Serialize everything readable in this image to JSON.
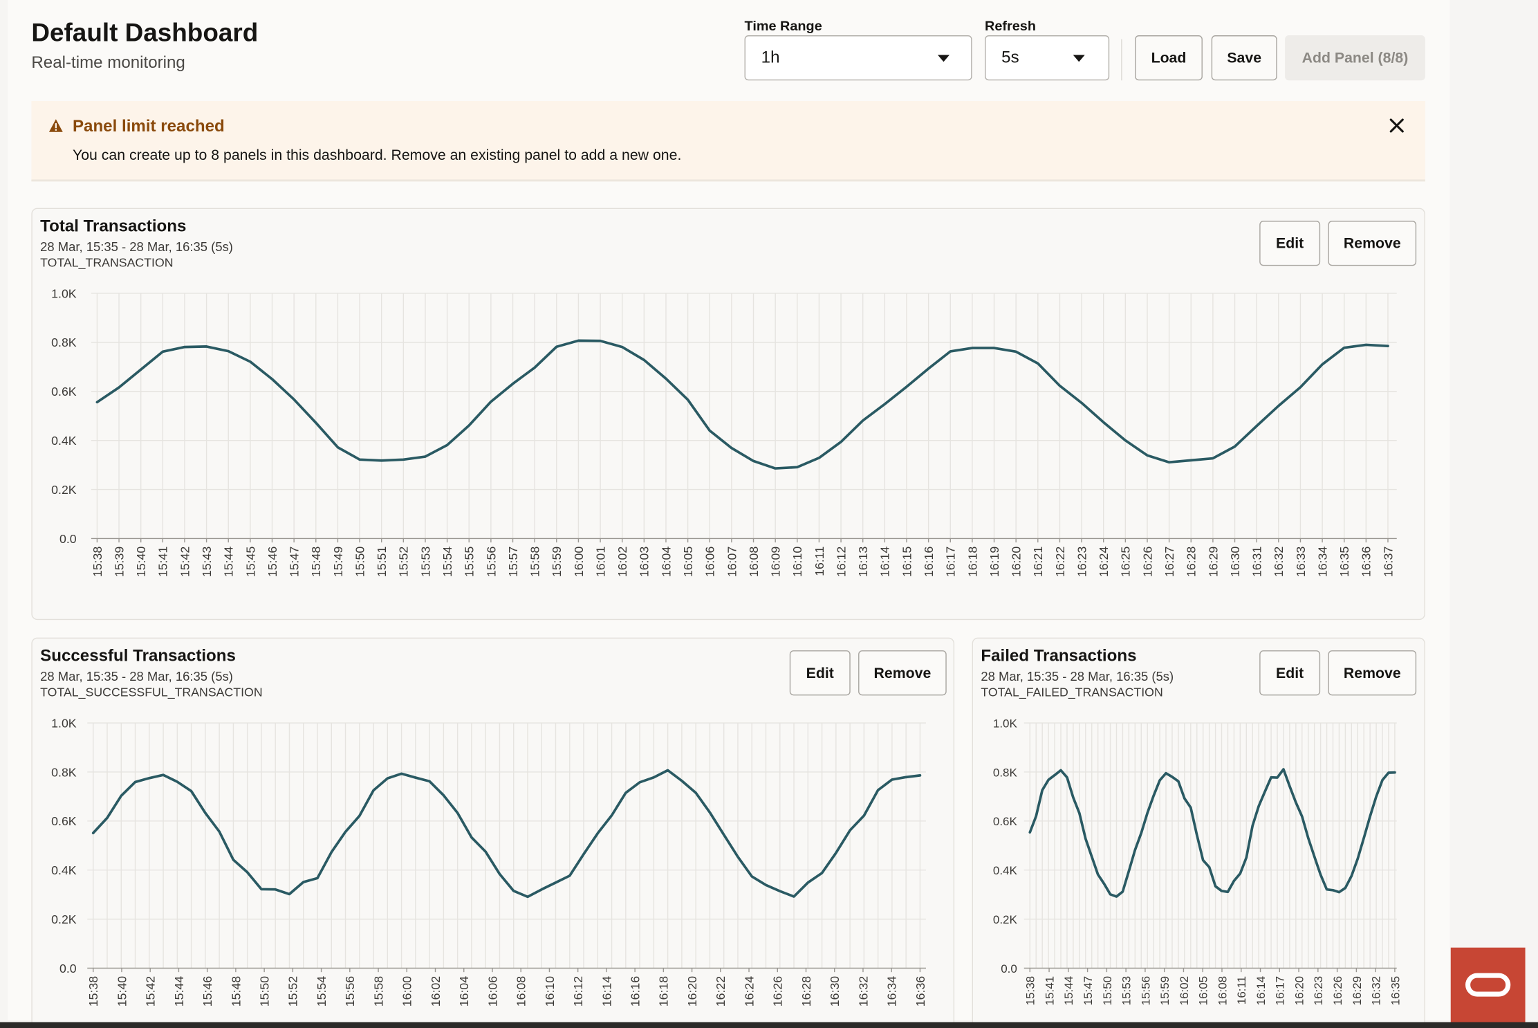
{
  "header": {
    "title": "Default Dashboard",
    "subtitle": "Real-time monitoring"
  },
  "toolbar": {
    "time_range_label": "Time Range",
    "time_range_value": "1h",
    "refresh_label": "Refresh",
    "refresh_value": "5s",
    "load_label": "Load",
    "save_label": "Save",
    "add_panel_label": "Add Panel (8/8)"
  },
  "alert": {
    "title": "Panel limit reached",
    "message": "You can create up to 8 panels in this dashboard. Remove an existing panel to add a new one.",
    "icon": "warning-icon",
    "close_icon": "close-icon"
  },
  "panel_buttons": {
    "edit_label": "Edit",
    "remove_label": "Remove"
  },
  "panels": [
    {
      "title": "Total Transactions",
      "range": "28 Mar, 15:35 - 28 Mar, 16:35 (5s)",
      "metric": "TOTAL_TRANSACTION"
    },
    {
      "title": "Successful Transactions",
      "range": "28 Mar, 15:35 - 28 Mar, 16:35 (5s)",
      "metric": "TOTAL_SUCCESSFUL_TRANSACTION"
    },
    {
      "title": "Failed Transactions",
      "range": "28 Mar, 15:35 - 28 Mar, 16:35 (5s)",
      "metric": "TOTAL_FAILED_TRANSACTION"
    }
  ],
  "chart_data": [
    {
      "type": "line",
      "title": "Total Transactions",
      "ylim": [
        0,
        1000
      ],
      "yticks": [
        "0.0",
        "0.2K",
        "0.4K",
        "0.6K",
        "0.8K",
        "1.0K"
      ],
      "xticks": [
        "15:38",
        "15:39",
        "15:40",
        "15:41",
        "15:42",
        "15:43",
        "15:44",
        "15:45",
        "15:46",
        "15:47",
        "15:48",
        "15:49",
        "15:50",
        "15:51",
        "15:52",
        "15:53",
        "15:54",
        "15:55",
        "15:56",
        "15:57",
        "15:58",
        "15:59",
        "16:00",
        "16:01",
        "16:02",
        "16:03",
        "16:04",
        "16:05",
        "16:06",
        "16:07",
        "16:08",
        "16:09",
        "16:10",
        "16:11",
        "16:12",
        "16:13",
        "16:14",
        "16:15",
        "16:16",
        "16:17",
        "16:18",
        "16:19",
        "16:20",
        "16:21",
        "16:22",
        "16:23",
        "16:24",
        "16:25",
        "16:26",
        "16:27",
        "16:28",
        "16:29",
        "16:30",
        "16:31",
        "16:32",
        "16:33",
        "16:34",
        "16:35",
        "16:36",
        "16:37"
      ],
      "grid": true,
      "line_color": "#2a5a63",
      "series": [
        {
          "values": [
            556,
            616,
            689,
            762,
            781,
            783,
            764,
            721,
            650,
            567,
            472,
            372,
            322,
            318,
            322,
            334,
            381,
            461,
            558,
            631,
            697,
            782,
            807,
            806,
            781,
            728,
            652,
            566,
            440,
            369,
            316,
            286,
            291,
            329,
            394,
            481,
            548,
            619,
            693,
            763,
            777,
            777,
            762,
            714,
            623,
            553,
            474,
            400,
            339,
            311,
            319,
            327,
            375,
            459,
            541,
            617,
            710,
            778,
            790,
            785
          ]
        }
      ]
    },
    {
      "type": "line",
      "title": "Successful Transactions",
      "ylim": [
        0,
        1000
      ],
      "yticks": [
        "0.0",
        "0.2K",
        "0.4K",
        "0.6K",
        "0.8K",
        "1.0K"
      ],
      "xticks": [
        "15:38",
        "15:40",
        "15:42",
        "15:44",
        "15:46",
        "15:48",
        "15:50",
        "15:52",
        "15:54",
        "15:56",
        "15:58",
        "16:00",
        "16:02",
        "16:04",
        "16:06",
        "16:08",
        "16:10",
        "16:12",
        "16:14",
        "16:16",
        "16:18",
        "16:20",
        "16:22",
        "16:24",
        "16:26",
        "16:28",
        "16:30",
        "16:32",
        "16:34",
        "16:36"
      ],
      "grid": true,
      "line_color": "#2a5a63",
      "series": [
        {
          "values": [
            551,
            613,
            703,
            759,
            775,
            788,
            760,
            722,
            633,
            557,
            442,
            391,
            322,
            321,
            302,
            351,
            367,
            473,
            556,
            621,
            725,
            774,
            793,
            777,
            762,
            705,
            633,
            533,
            475,
            384,
            315,
            291,
            321,
            349,
            377,
            465,
            550,
            623,
            715,
            758,
            778,
            807,
            764,
            715,
            635,
            544,
            454,
            374,
            339,
            314,
            292,
            349,
            388,
            470,
            562,
            622,
            726,
            769,
            779,
            786
          ]
        }
      ]
    },
    {
      "type": "line",
      "title": "Failed Transactions",
      "ylim": [
        0,
        1000
      ],
      "yticks": [
        "0.0",
        "0.2K",
        "0.4K",
        "0.6K",
        "0.8K",
        "1.0K"
      ],
      "xticks": [
        "15:38",
        "15:41",
        "15:44",
        "15:47",
        "15:50",
        "15:53",
        "15:56",
        "15:59",
        "16:02",
        "16:05",
        "16:08",
        "16:11",
        "16:14",
        "16:17",
        "16:20",
        "16:23",
        "16:26",
        "16:29",
        "16:32",
        "16:35"
      ],
      "grid": true,
      "line_color": "#2a5a63",
      "series": [
        {
          "values": [
            554,
            620,
            726,
            768,
            787,
            807,
            778,
            696,
            632,
            528,
            455,
            382,
            344,
            301,
            292,
            312,
            396,
            482,
            551,
            633,
            703,
            766,
            795,
            780,
            762,
            692,
            655,
            543,
            440,
            412,
            334,
            315,
            311,
            356,
            386,
            451,
            581,
            661,
            720,
            778,
            777,
            811,
            742,
            676,
            619,
            531,
            455,
            381,
            321,
            318,
            310,
            327,
            376,
            446,
            531,
            619,
            700,
            767,
            797,
            798
          ]
        }
      ]
    }
  ]
}
